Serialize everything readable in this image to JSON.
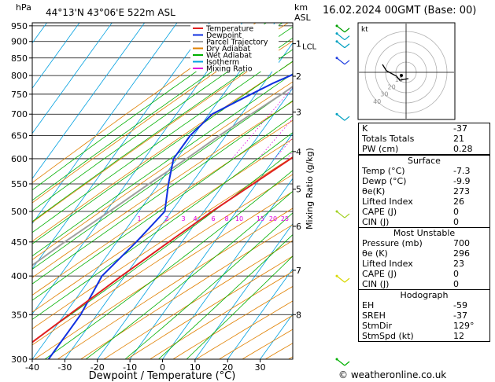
{
  "header": {
    "hpa_label": "hPa",
    "location": "44°13'N  43°06'E  522m  ASL",
    "km_label": "km",
    "asl_label": "ASL",
    "datetime": "16.02.2024  00GMT  (Base: 00)"
  },
  "chart_data": {
    "type": "skew-t",
    "xlabel": "Dewpoint / Temperature (°C)",
    "ylabel": "hPa",
    "mixing_ratio_label": "Mixing Ratio (g/kg)",
    "pressure_ticks": [
      300,
      350,
      400,
      450,
      500,
      550,
      600,
      650,
      700,
      750,
      800,
      850,
      900,
      950
    ],
    "temp_ticks": [
      -40,
      -30,
      -20,
      -10,
      0,
      10,
      20,
      30
    ],
    "xlim": [
      -40,
      40
    ],
    "ylim": [
      960,
      300
    ],
    "km_ticks": [
      {
        "p": 350,
        "label": "8"
      },
      {
        "p": 408,
        "label": "7"
      },
      {
        "p": 475,
        "label": "6"
      },
      {
        "p": 540,
        "label": "5"
      },
      {
        "p": 615,
        "label": "4"
      },
      {
        "p": 705,
        "label": "3"
      },
      {
        "p": 798,
        "label": "2"
      },
      {
        "p": 893,
        "label": "1"
      }
    ],
    "lcl_label": "LCL",
    "lcl_p": 910,
    "mixing_ratio_values": [
      "1",
      "2",
      "3",
      "4",
      "6",
      "8",
      "10",
      "15",
      "20",
      "25"
    ],
    "mixing_ratio_numbers": [
      1,
      2,
      3,
      4,
      6,
      8,
      10,
      15,
      20,
      25
    ],
    "legend": [
      {
        "label": "Temperature",
        "color": "#e02020"
      },
      {
        "label": "Dewpoint",
        "color": "#1030e0"
      },
      {
        "label": "Parcel Trajectory",
        "color": "#a0a0a0"
      },
      {
        "label": "Dry Adiabat",
        "color": "#e08000"
      },
      {
        "label": "Wet Adiabat",
        "color": "#00b000"
      },
      {
        "label": "Isotherm",
        "color": "#00a0e0"
      },
      {
        "label": "Mixing Ratio",
        "color": "#e000e0"
      }
    ],
    "temperature": [
      [
        955,
        -7.3
      ],
      [
        930,
        -8
      ],
      [
        900,
        -9
      ],
      [
        870,
        -6
      ],
      [
        840,
        -3
      ],
      [
        800,
        1
      ],
      [
        760,
        5
      ],
      [
        740,
        5
      ],
      [
        700,
        3
      ],
      [
        650,
        0
      ],
      [
        600,
        -5
      ],
      [
        550,
        -11
      ],
      [
        500,
        -17.5
      ],
      [
        450,
        -24
      ],
      [
        400,
        -31
      ],
      [
        350,
        -38.5
      ],
      [
        300,
        -47
      ]
    ],
    "dewpoint": [
      [
        955,
        -9.9
      ],
      [
        930,
        -11
      ],
      [
        900,
        -12
      ],
      [
        860,
        -15
      ],
      [
        820,
        -20
      ],
      [
        780,
        -27
      ],
      [
        740,
        -33
      ],
      [
        700,
        -39
      ],
      [
        650,
        -41
      ],
      [
        600,
        -41
      ],
      [
        550,
        -37
      ],
      [
        500,
        -32
      ],
      [
        450,
        -34
      ],
      [
        400,
        -37
      ],
      [
        350,
        -35
      ],
      [
        300,
        -35
      ]
    ],
    "parcel": [
      [
        955,
        -7.3
      ],
      [
        910,
        -10
      ],
      [
        850,
        -14
      ],
      [
        800,
        -18
      ],
      [
        750,
        -22
      ],
      [
        700,
        -27
      ],
      [
        650,
        -32
      ],
      [
        600,
        -37
      ],
      [
        550,
        -43
      ],
      [
        500,
        -49
      ],
      [
        450,
        -56
      ],
      [
        400,
        -63
      ],
      [
        350,
        -70
      ],
      [
        300,
        -78
      ]
    ],
    "wind_barbs": [
      {
        "p": 300,
        "color": "#00b000"
      },
      {
        "p": 400,
        "color": "#d8d800"
      },
      {
        "p": 500,
        "color": "#a0d020"
      },
      {
        "p": 700,
        "color": "#00a0c0"
      },
      {
        "p": 850,
        "color": "#2040e0"
      },
      {
        "p": 900,
        "color": "#00a0c0"
      },
      {
        "p": 925,
        "color": "#00a0c0"
      },
      {
        "p": 950,
        "color": "#00a000"
      }
    ],
    "hodograph": {
      "label": "kt",
      "ring_labels": [
        "10",
        "20",
        "30",
        "40"
      ],
      "trace": [
        [
          0.3,
          -0.8
        ],
        [
          -0.8,
          -1.0
        ],
        [
          -1.2,
          -0.5
        ],
        [
          -2.5,
          0.2
        ],
        [
          -3.0,
          1.0
        ]
      ],
      "storm": [
        -0.6,
        -0.4
      ]
    }
  },
  "indices": [
    {
      "label": "K",
      "value": "-37"
    },
    {
      "label": "Totals Totals",
      "value": "21"
    },
    {
      "label": "PW (cm)",
      "value": "0.28"
    }
  ],
  "surface": {
    "title": "Surface",
    "rows": [
      {
        "label": "Temp (°C)",
        "value": "-7.3"
      },
      {
        "label": "Dewp (°C)",
        "value": "-9.9"
      },
      {
        "label": "θe(K)",
        "value": "273"
      },
      {
        "label": "Lifted Index",
        "value": "26"
      },
      {
        "label": "CAPE (J)",
        "value": "0"
      },
      {
        "label": "CIN (J)",
        "value": "0"
      }
    ]
  },
  "most_unstable": {
    "title": "Most Unstable",
    "rows": [
      {
        "label": "Pressure (mb)",
        "value": "700"
      },
      {
        "label": "θe (K)",
        "value": "296"
      },
      {
        "label": "Lifted Index",
        "value": "23"
      },
      {
        "label": "CAPE (J)",
        "value": "0"
      },
      {
        "label": "CIN (J)",
        "value": "0"
      }
    ]
  },
  "hodograph_table": {
    "title": "Hodograph",
    "rows": [
      {
        "label": "EH",
        "value": "-59"
      },
      {
        "label": "SREH",
        "value": "-37"
      },
      {
        "label": "StmDir",
        "value": "129°"
      },
      {
        "label": "StmSpd (kt)",
        "value": "12"
      }
    ]
  },
  "footer": "© weatheronline.co.uk"
}
